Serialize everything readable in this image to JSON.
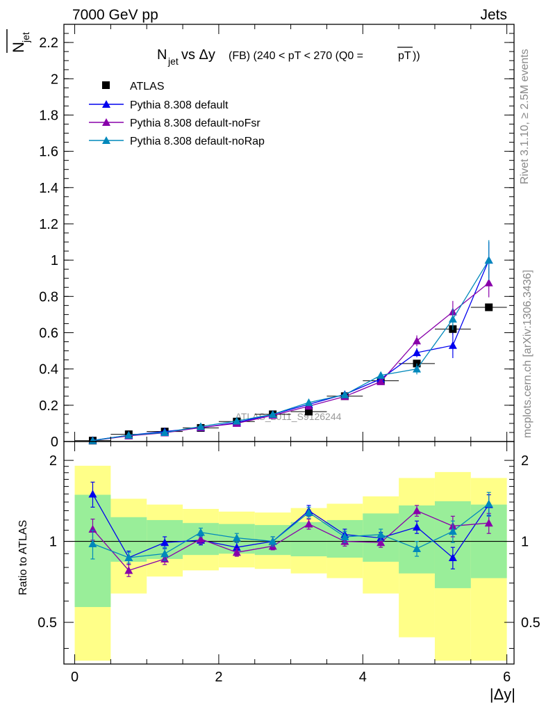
{
  "header": {
    "left": "7000 GeV pp",
    "right": "Jets"
  },
  "side": {
    "top": "Rivet 3.1.10, ≥ 2.5M events",
    "bottom": "mcplots.cern.ch [arXiv:1306.3436]"
  },
  "chart_data": [
    {
      "type": "scatter",
      "title_main": "N",
      "title_sub": "jet",
      "title_mid": " vs Δy",
      "title_rest": " (FB) (240 < pT < 270 (Q0 =",
      "title_over": "pT",
      "title_end": "))",
      "ylabel_main": "N",
      "ylabel_sub": "jet",
      "watermark": "ATLAS_2011_S9126244",
      "xlim": [
        -0.15,
        6.1
      ],
      "ylim": [
        0,
        2.3
      ],
      "yticks": [
        0,
        0.2,
        0.4,
        0.6,
        0.8,
        1,
        1.2,
        1.4,
        1.6,
        1.8,
        2,
        2.2
      ],
      "ytick_labels": [
        "0",
        "0.2",
        "0.4",
        "0.6",
        "0.8",
        "1",
        "1.2",
        "1.4",
        "1.6",
        "1.8",
        "2",
        "2.2"
      ],
      "legend_position": "top-left",
      "x": [
        0.25,
        0.75,
        1.25,
        1.75,
        2.25,
        2.75,
        3.25,
        3.75,
        4.25,
        4.75,
        5.25,
        5.75
      ],
      "xerr": 0.25,
      "series": [
        {
          "name": "ATLAS",
          "color": "#000000",
          "marker": "square",
          "line": false,
          "values": [
            0.005,
            0.04,
            0.055,
            0.075,
            0.11,
            0.15,
            0.165,
            0.25,
            0.335,
            0.43,
            0.62,
            0.74
          ],
          "err": [
            0.002,
            0.003,
            0.004,
            0.005,
            0.006,
            0.008,
            0.01,
            0.012,
            0.015,
            0.02,
            0.03,
            0.02
          ]
        },
        {
          "name": "Pythia 8.308 default",
          "color": "#0000ee",
          "marker": "triangle",
          "line": true,
          "values": [
            0.006,
            0.035,
            0.055,
            0.076,
            0.105,
            0.15,
            0.205,
            0.26,
            0.345,
            0.49,
            0.53,
            1.0
          ],
          "err": [
            0.002,
            0.003,
            0.004,
            0.005,
            0.006,
            0.007,
            0.01,
            0.012,
            0.015,
            0.025,
            0.07,
            0.1
          ]
        },
        {
          "name": "Pythia 8.308 default-noFsr",
          "color": "#8800aa",
          "marker": "triangle",
          "line": true,
          "values": [
            0.005,
            0.031,
            0.048,
            0.077,
            0.1,
            0.144,
            0.195,
            0.248,
            0.33,
            0.555,
            0.715,
            0.875
          ],
          "err": [
            0.002,
            0.003,
            0.004,
            0.005,
            0.006,
            0.007,
            0.01,
            0.012,
            0.015,
            0.03,
            0.06,
            0.08
          ]
        },
        {
          "name": "Pythia 8.308 default-noRap",
          "color": "#0088bb",
          "marker": "triangle",
          "line": true,
          "values": [
            0.005,
            0.035,
            0.05,
            0.083,
            0.113,
            0.15,
            0.215,
            0.258,
            0.365,
            0.4,
            0.675,
            1.0
          ],
          "err": [
            0.002,
            0.003,
            0.004,
            0.005,
            0.006,
            0.007,
            0.01,
            0.012,
            0.015,
            0.03,
            0.06,
            0.11
          ]
        }
      ]
    },
    {
      "type": "scatter",
      "ylabel": "Ratio to ATLAS",
      "xlabel": "|Δy|",
      "xlim": [
        -0.15,
        6.1
      ],
      "ylim": [
        0.35,
        2.35
      ],
      "log_scale_y": true,
      "xticks": [
        0,
        2,
        4,
        6
      ],
      "xtick_labels": [
        "0",
        "2",
        "4",
        "6"
      ],
      "yticks": [
        0.5,
        1,
        2
      ],
      "ytick_labels": [
        "0.5",
        "1",
        "2"
      ],
      "reference_line": 1,
      "x": [
        0.25,
        0.75,
        1.25,
        1.75,
        2.25,
        2.75,
        3.25,
        3.75,
        4.25,
        4.75,
        5.25,
        5.75
      ],
      "xerr": 0.25,
      "bands": {
        "yellow": {
          "color": "#ffff88",
          "lo": [
            0.36,
            0.64,
            0.74,
            0.78,
            0.8,
            0.79,
            0.76,
            0.73,
            0.64,
            0.44,
            0.36,
            0.36
          ],
          "hi": [
            1.91,
            1.44,
            1.37,
            1.32,
            1.29,
            1.28,
            1.33,
            1.38,
            1.47,
            1.72,
            1.81,
            1.72
          ]
        },
        "green": {
          "color": "#99ee99",
          "lo": [
            0.57,
            0.84,
            0.86,
            0.89,
            0.9,
            0.89,
            0.88,
            0.87,
            0.84,
            0.76,
            0.67,
            0.73
          ],
          "hi": [
            1.49,
            1.23,
            1.2,
            1.17,
            1.16,
            1.15,
            1.18,
            1.2,
            1.27,
            1.36,
            1.41,
            1.37
          ]
        }
      },
      "series": [
        {
          "name": "Pythia 8.308 default",
          "color": "#0000ee",
          "values": [
            1.5,
            0.87,
            0.99,
            1.01,
            0.95,
            1.0,
            1.3,
            1.06,
            1.03,
            1.13,
            0.87,
            1.37
          ],
          "err": [
            0.16,
            0.05,
            0.05,
            0.04,
            0.04,
            0.04,
            0.06,
            0.05,
            0.05,
            0.06,
            0.08,
            0.12
          ]
        },
        {
          "name": "Pythia 8.308 default-noFsr",
          "color": "#8800aa",
          "values": [
            1.11,
            0.78,
            0.86,
            1.02,
            0.91,
            0.96,
            1.16,
            1.0,
            0.99,
            1.3,
            1.14,
            1.17
          ],
          "err": [
            0.1,
            0.04,
            0.04,
            0.04,
            0.03,
            0.03,
            0.05,
            0.04,
            0.04,
            0.06,
            0.1,
            0.1
          ]
        },
        {
          "name": "Pythia 8.308 default-noRap",
          "color": "#0088bb",
          "values": [
            0.98,
            0.87,
            0.9,
            1.08,
            1.03,
            1.0,
            1.28,
            1.04,
            1.06,
            0.94,
            1.09,
            1.38
          ],
          "err": [
            0.12,
            0.04,
            0.05,
            0.04,
            0.04,
            0.04,
            0.06,
            0.05,
            0.05,
            0.06,
            0.1,
            0.14
          ]
        }
      ]
    }
  ]
}
